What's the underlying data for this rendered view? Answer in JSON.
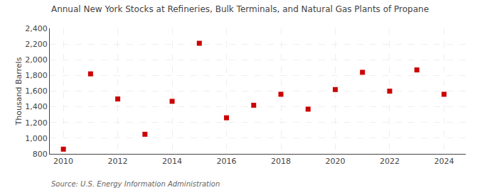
{
  "chart_data": {
    "type": "scatter",
    "title": "Annual New York Stocks at Refineries, Bulk Terminals, and Natural Gas Plants of Propane",
    "ylabel": "Thousand Barrels",
    "annotations": [
      "Source: U.S. Energy Information Administration"
    ],
    "x": [
      2010,
      2011,
      2012,
      2013,
      2014,
      2015,
      2016,
      2017,
      2018,
      2019,
      2020,
      2021,
      2022,
      2023,
      2024
    ],
    "values": [
      860,
      1820,
      1500,
      1050,
      1470,
      2210,
      1260,
      1420,
      1560,
      1370,
      1620,
      1840,
      1600,
      1870,
      1560
    ],
    "color": "#CC0000",
    "marker": "square",
    "xlim": [
      2009.5,
      2024.8
    ],
    "xticks": [
      2010,
      2012,
      2014,
      2016,
      2018,
      2020,
      2022,
      2024
    ],
    "ylim": [
      800,
      2400
    ],
    "yticks": [
      800,
      {
        "value": 1000,
        "label": "1,000"
      },
      {
        "value": 1200,
        "label": "1,200"
      },
      {
        "value": 1400,
        "label": "1,400"
      },
      {
        "value": 1600,
        "label": "1,600"
      },
      {
        "value": 1800,
        "label": "1,800"
      },
      {
        "value": 2000,
        "label": "2,000"
      },
      {
        "value": 2200,
        "label": "2,200"
      },
      {
        "value": 2400,
        "label": "2,400"
      }
    ],
    "grid": true
  }
}
